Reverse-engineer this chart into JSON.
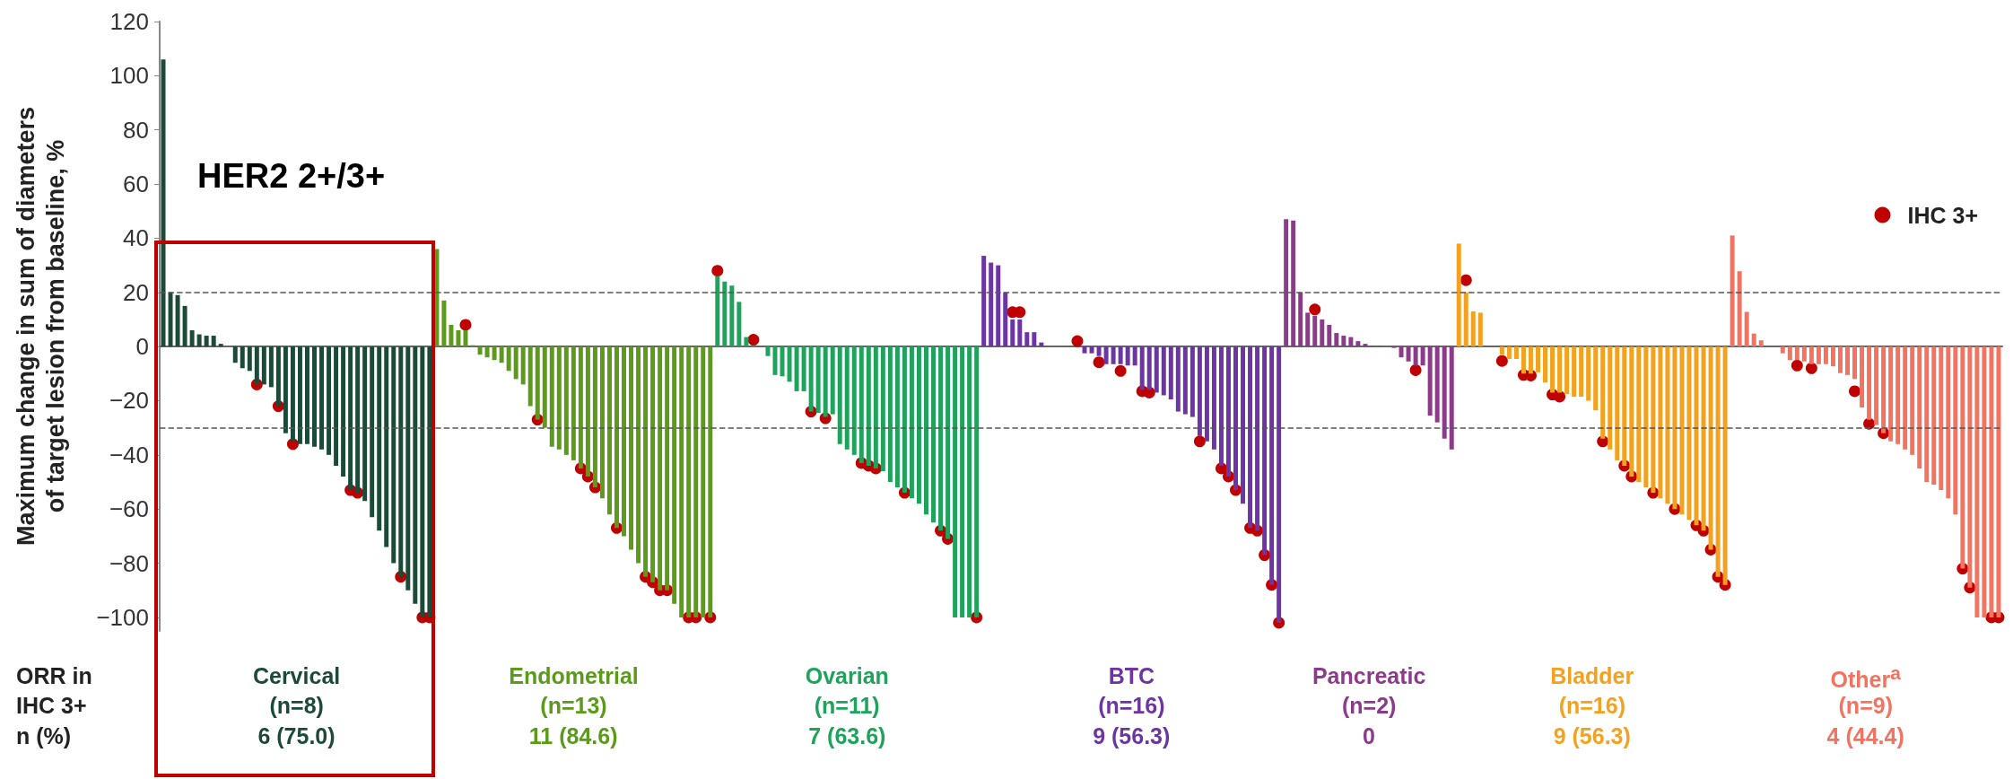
{
  "chart_data": {
    "type": "bar",
    "ylabel": "Maximum change in sum of diameters of target lesion from baseline, %",
    "categories": [
      null,
      null,
      null,
      null,
      null,
      null,
      null,
      null,
      null,
      null,
      null,
      null,
      null,
      null,
      null,
      null,
      null,
      null,
      null,
      null,
      null,
      null,
      null,
      null,
      null,
      null,
      null,
      null,
      null,
      null,
      null,
      null,
      null,
      null,
      null,
      null,
      null,
      null,
      null,
      null,
      null,
      null,
      null,
      null,
      null,
      null,
      null,
      null,
      null,
      null,
      null,
      null,
      null,
      null,
      null,
      null,
      null,
      null,
      null,
      null,
      null,
      null,
      null,
      null,
      null,
      null,
      null,
      null,
      null,
      null,
      null,
      null,
      null,
      null,
      null,
      null,
      null,
      null,
      null,
      null,
      null,
      null,
      null,
      null,
      null,
      null,
      null,
      null,
      null,
      null,
      null,
      null,
      null,
      null,
      null,
      null,
      null,
      null,
      null,
      null,
      null,
      null,
      null,
      null,
      null,
      null,
      null,
      null,
      null,
      null,
      null,
      null,
      null,
      null,
      null,
      null,
      null,
      null,
      null,
      null,
      null,
      null,
      null,
      null,
      null,
      null,
      null,
      null,
      null,
      null,
      null,
      null,
      null,
      null,
      null,
      null,
      null,
      null,
      null,
      null,
      null,
      null,
      null,
      null,
      null,
      null,
      null,
      null,
      null,
      null,
      null,
      null,
      null,
      null,
      null,
      null,
      null,
      null,
      null,
      null,
      null,
      null,
      null,
      null,
      null,
      null,
      null,
      null,
      null,
      null,
      null,
      null,
      null,
      null,
      null,
      null,
      null,
      null,
      null,
      null,
      null,
      null,
      null,
      null,
      null,
      null,
      null,
      null,
      null,
      null,
      null,
      null,
      null,
      null,
      null,
      null,
      null,
      null,
      null,
      null,
      null,
      null,
      null,
      null,
      null,
      null,
      null,
      null,
      null,
      null,
      null,
      null,
      null,
      null,
      null,
      null,
      null,
      null,
      null,
      null,
      null,
      null,
      null,
      null,
      null,
      null,
      null,
      null,
      null,
      null,
      null,
      null,
      null,
      null,
      null,
      null,
      null,
      null,
      null,
      null,
      null,
      null,
      null,
      null,
      null,
      null,
      null,
      null,
      null,
      null,
      null,
      null,
      null,
      null,
      null,
      null
    ],
    "series": [
      {
        "values": [
          106,
          20,
          19,
          15,
          6,
          4.5,
          4,
          4,
          1,
          null,
          -6,
          -8,
          -9,
          -14,
          -14,
          -15,
          -22,
          -32,
          -35,
          -36,
          -36,
          -37,
          -38,
          -40,
          -44,
          -48,
          -53,
          -54,
          -57,
          -63,
          -68,
          -74,
          -80,
          -85,
          -90,
          -95,
          -100,
          -100,
          36,
          17,
          8,
          6,
          6,
          0.5,
          -3,
          -4,
          -5,
          -6,
          -9,
          -12,
          -14,
          -22,
          -27,
          -30,
          -37,
          -38,
          -40,
          -42,
          -45,
          -48,
          -52,
          -56,
          -62,
          -67,
          -70,
          -75,
          -80,
          -85,
          -87,
          -90,
          -90,
          -95,
          -100,
          -100,
          -100,
          -100,
          -100,
          26,
          24,
          22.5,
          16.5,
          3.5,
          0.5,
          null,
          -3.5,
          -10.5,
          -11,
          -13,
          -16.5,
          -16.5,
          -24,
          -24.5,
          -26,
          -25,
          -36,
          -38,
          -40,
          -43,
          -44,
          -45,
          -46,
          -50,
          -52,
          -54,
          -56,
          -58,
          -62,
          -65,
          -68,
          -71,
          -100,
          -100,
          -100,
          -100,
          33.5,
          31,
          30,
          20,
          10,
          10,
          5.3,
          5.3,
          1.5,
          null,
          null,
          null,
          null,
          null,
          -2.5,
          -2.5,
          -3.5,
          -6.5,
          -6.5,
          -6.5,
          -7,
          -7,
          -16,
          -16,
          -17,
          -18,
          -19.5,
          -24,
          -25,
          -26,
          -33,
          -35,
          -38,
          -44,
          -48,
          -53,
          -58,
          -67,
          -68,
          -77,
          -88,
          -102,
          47,
          46.5,
          20,
          12.5,
          11.3,
          10,
          8,
          5,
          4,
          3.5,
          2,
          1,
          0.3,
          0.3,
          null,
          -0.5,
          -4,
          -5.5,
          -7,
          -7,
          -25.5,
          -28,
          -34,
          -38,
          38,
          20,
          13,
          12.5,
          null,
          null,
          -3,
          -4.6,
          -4.6,
          -10,
          -10,
          -9.5,
          -13.3,
          -17,
          -17,
          -17.5,
          -18.5,
          -18.5,
          -20,
          -23.5,
          -34,
          -38,
          -42,
          -44,
          -48,
          -50,
          -52,
          -54,
          -56,
          -58,
          -60,
          -62,
          -64,
          -66,
          -68,
          -75,
          -85,
          -88,
          41,
          27.8,
          12.8,
          4.8,
          2.3,
          null,
          null,
          -2.5,
          -5,
          -5,
          -5.5,
          -6.5,
          -6.5,
          -6.5,
          -7.3,
          -9.8,
          -10.5,
          -12,
          -22.5,
          -27,
          -29,
          -32,
          -35,
          -36,
          -38,
          -40,
          -45,
          -50,
          -51,
          -53,
          -56,
          -62,
          -82,
          -89,
          -100,
          -100,
          -100,
          -100
        ],
        "colors": [
          "#1d4a38",
          "#1d4a38",
          "#1d4a38",
          "#1d4a38",
          "#1d4a38",
          "#1d4a38",
          "#1d4a38",
          "#1d4a38",
          "#1d4a38",
          "#1d4a38",
          "#1d4a38",
          "#1d4a38",
          "#1d4a38",
          "#1d4a38",
          "#1d4a38",
          "#1d4a38",
          "#1d4a38",
          "#1d4a38",
          "#1d4a38",
          "#1d4a38",
          "#1d4a38",
          "#1d4a38",
          "#1d4a38",
          "#1d4a38",
          "#1d4a38",
          "#1d4a38",
          "#1d4a38",
          "#1d4a38",
          "#1d4a38",
          "#1d4a38",
          "#1d4a38",
          "#1d4a38",
          "#1d4a38",
          "#1d4a38",
          "#1d4a38",
          "#1d4a38",
          "#1d4a38",
          "#1d4a38",
          "#5b9a1b",
          "#5b9a1b",
          "#5b9a1b",
          "#5b9a1b",
          "#5b9a1b",
          "#5b9a1b",
          "#5b9a1b",
          "#5b9a1b",
          "#5b9a1b",
          "#5b9a1b",
          "#5b9a1b",
          "#5b9a1b",
          "#5b9a1b",
          "#5b9a1b",
          "#5b9a1b",
          "#5b9a1b",
          "#5b9a1b",
          "#5b9a1b",
          "#5b9a1b",
          "#5b9a1b",
          "#5b9a1b",
          "#5b9a1b",
          "#5b9a1b",
          "#5b9a1b",
          "#5b9a1b",
          "#5b9a1b",
          "#5b9a1b",
          "#5b9a1b",
          "#5b9a1b",
          "#5b9a1b",
          "#5b9a1b",
          "#5b9a1b",
          "#5b9a1b",
          "#5b9a1b",
          "#5b9a1b",
          "#5b9a1b",
          "#5b9a1b",
          "#5b9a1b",
          "#5b9a1b",
          "#1fa35c",
          "#1fa35c",
          "#1fa35c",
          "#1fa35c",
          "#1fa35c",
          "#1fa35c",
          "#1fa35c",
          "#1fa35c",
          "#1fa35c",
          "#1fa35c",
          "#1fa35c",
          "#1fa35c",
          "#1fa35c",
          "#1fa35c",
          "#1fa35c",
          "#1fa35c",
          "#1fa35c",
          "#1fa35c",
          "#1fa35c",
          "#1fa35c",
          "#1fa35c",
          "#1fa35c",
          "#1fa35c",
          "#1fa35c",
          "#1fa35c",
          "#1fa35c",
          "#1fa35c",
          "#1fa35c",
          "#1fa35c",
          "#1fa35c",
          "#1fa35c",
          "#1fa35c",
          "#1fa35c",
          "#1fa35c",
          "#1fa35c",
          "#1fa35c",
          "#1fa35c",
          "#6c35a3",
          "#6c35a3",
          "#6c35a3",
          "#6c35a3",
          "#6c35a3",
          "#6c35a3",
          "#6c35a3",
          "#6c35a3",
          "#6c35a3",
          "#6c35a3",
          "#6c35a3",
          "#6c35a3",
          "#6c35a3",
          "#6c35a3",
          "#6c35a3",
          "#6c35a3",
          "#6c35a3",
          "#6c35a3",
          "#6c35a3",
          "#6c35a3",
          "#6c35a3",
          "#6c35a3",
          "#6c35a3",
          "#6c35a3",
          "#6c35a3",
          "#6c35a3",
          "#6c35a3",
          "#6c35a3",
          "#6c35a3",
          "#6c35a3",
          "#6c35a3",
          "#6c35a3",
          "#6c35a3",
          "#6c35a3",
          "#6c35a3",
          "#6c35a3",
          "#6c35a3",
          "#6c35a3",
          "#6c35a3",
          "#6c35a3",
          "#6c35a3",
          "#6c35a3",
          "#8c3a8a",
          "#8c3a8a",
          "#8c3a8a",
          "#8c3a8a",
          "#8c3a8a",
          "#8c3a8a",
          "#8c3a8a",
          "#8c3a8a",
          "#8c3a8a",
          "#8c3a8a",
          "#8c3a8a",
          "#8c3a8a",
          "#8c3a8a",
          "#8c3a8a",
          "#8c3a8a",
          "#8c3a8a",
          "#8c3a8a",
          "#8c3a8a",
          "#8c3a8a",
          "#8c3a8a",
          "#8c3a8a",
          "#8c3a8a",
          "#8c3a8a",
          "#8c3a8a",
          "#f3a11e",
          "#f3a11e",
          "#f3a11e",
          "#f3a11e",
          "#f3a11e",
          "#f3a11e",
          "#f3a11e",
          "#f3a11e",
          "#f3a11e",
          "#f3a11e",
          "#f3a11e",
          "#f3a11e",
          "#f3a11e",
          "#f3a11e",
          "#f3a11e",
          "#f3a11e",
          "#f3a11e",
          "#f3a11e",
          "#f3a11e",
          "#f3a11e",
          "#f3a11e",
          "#f3a11e",
          "#f3a11e",
          "#f3a11e",
          "#f3a11e",
          "#f3a11e",
          "#f3a11e",
          "#f3a11e",
          "#f3a11e",
          "#f3a11e",
          "#f3a11e",
          "#f3a11e",
          "#f3a11e",
          "#f3a11e",
          "#f3a11e",
          "#f3a11e",
          "#f3a11e",
          "#f3a11e",
          "#f2735f",
          "#f2735f",
          "#f2735f",
          "#f2735f",
          "#f2735f",
          "#f2735f",
          "#f2735f",
          "#f2735f",
          "#f2735f",
          "#f2735f",
          "#f2735f",
          "#f2735f",
          "#f2735f",
          "#f2735f",
          "#f2735f",
          "#f2735f",
          "#f2735f",
          "#f2735f",
          "#f2735f",
          "#f2735f",
          "#f2735f",
          "#f2735f",
          "#f2735f",
          "#f2735f",
          "#f2735f",
          "#f2735f",
          "#f2735f",
          "#f2735f",
          "#f2735f",
          "#f2735f",
          "#f2735f",
          "#f2735f",
          "#f2735f",
          "#f2735f",
          "#f2735f",
          "#f2735f",
          "#f2735f",
          "#f2735f"
        ]
      },
      {
        "type": "scatter",
        "name": "IHC 3+",
        "color": "#c00000",
        "values": [
          null,
          null,
          null,
          null,
          null,
          null,
          null,
          null,
          null,
          null,
          null,
          null,
          null,
          -14,
          null,
          null,
          -22,
          null,
          -36,
          null,
          null,
          null,
          null,
          null,
          null,
          null,
          -53,
          -54,
          null,
          null,
          null,
          null,
          null,
          -85,
          null,
          null,
          -100,
          -100,
          null,
          null,
          null,
          null,
          8,
          null,
          null,
          null,
          null,
          null,
          null,
          null,
          null,
          null,
          -27,
          null,
          null,
          null,
          null,
          null,
          -45,
          -48,
          -52,
          null,
          null,
          -67,
          null,
          null,
          null,
          -85,
          -87,
          -90,
          -90,
          null,
          null,
          -100,
          -100,
          null,
          -100,
          28,
          null,
          null,
          null,
          null,
          2.5,
          null,
          null,
          null,
          null,
          null,
          null,
          null,
          -24,
          null,
          -26.5,
          null,
          null,
          null,
          null,
          -43,
          -44,
          -45,
          null,
          null,
          null,
          -54,
          null,
          null,
          null,
          null,
          -68,
          -71,
          null,
          null,
          null,
          -100,
          null,
          null,
          null,
          null,
          12.7,
          12.7,
          null,
          null,
          null,
          null,
          null,
          null,
          null,
          2,
          null,
          null,
          -5.8,
          null,
          null,
          -9,
          null,
          null,
          -16.5,
          -17,
          null,
          null,
          null,
          null,
          null,
          null,
          -35,
          null,
          null,
          -45,
          -48,
          -53,
          null,
          -67,
          -68,
          -77,
          -88,
          -102,
          null,
          null,
          null,
          null,
          13.7,
          null,
          null,
          null,
          null,
          null,
          null,
          null,
          null,
          null,
          null,
          null,
          null,
          null,
          -8.7,
          null,
          null,
          null,
          null,
          null,
          null,
          24.5,
          null,
          null,
          null,
          null,
          -5.3,
          null,
          null,
          -10.5,
          -10.7,
          null,
          null,
          -17.7,
          -18.5,
          null,
          null,
          null,
          null,
          null,
          -35,
          null,
          null,
          -44,
          -48,
          null,
          null,
          -54,
          null,
          null,
          -60,
          null,
          null,
          -66,
          -68,
          -75,
          -85,
          -88,
          null,
          null,
          null,
          null,
          null,
          null,
          null,
          null,
          null,
          -7,
          null,
          -8,
          null,
          null,
          null,
          null,
          null,
          -16.5,
          null,
          -28.5,
          null,
          -32,
          null,
          null,
          null,
          null,
          null,
          null,
          null,
          null,
          null,
          null,
          -82,
          -89,
          null,
          null,
          -100,
          -100
        ]
      }
    ],
    "ylim": [
      -105,
      120
    ],
    "yticks": [
      -100,
      -80,
      -60,
      -40,
      -20,
      0,
      20,
      40,
      60,
      80,
      100,
      120
    ],
    "ref_lines": [
      {
        "axis": "y",
        "value": 20,
        "line_style": "dashed",
        "color": "#555555"
      },
      {
        "axis": "y",
        "value": -30,
        "line_style": "dashed",
        "color": "#555555"
      }
    ],
    "annotations": [
      "HER2 2+/3+",
      "ORR in",
      "IHC 3+",
      "n (%)",
      "Cervical",
      "(n=8)",
      "6 (75.0)",
      "Endometrial",
      "(n=13)",
      "11 (84.6)",
      "Ovarian",
      "(n=11)",
      "7 (63.6)",
      "BTC",
      "(n=16)",
      "9 (56.3)",
      "Pancreatic",
      "(n=2)",
      "0",
      "Bladder",
      "(n=16)",
      "9 (56.3)",
      "Other$^{a}$",
      "(n=9)",
      "4 (44.4)"
    ],
    "legend": "top right",
    "marker": "circle",
    "grid": false,
    "tick_labels": "y"
  }
}
